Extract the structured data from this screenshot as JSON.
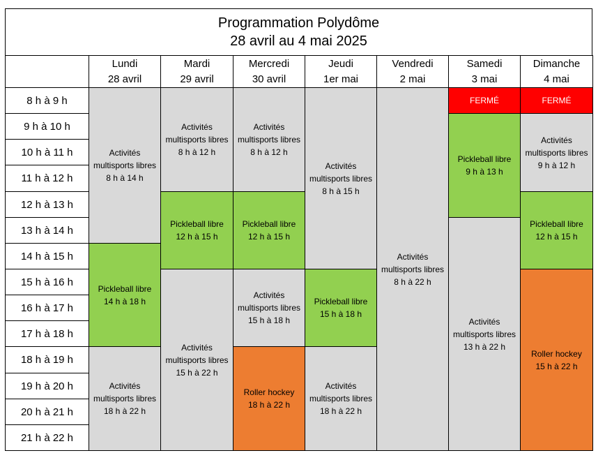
{
  "title": {
    "line1": "Programmation Polydôme",
    "line2": "28 avril au 4 mai 2025"
  },
  "days": [
    {
      "name": "Lundi",
      "date": "28 avril"
    },
    {
      "name": "Mardi",
      "date": "29 avril"
    },
    {
      "name": "Mercredi",
      "date": "30 avril"
    },
    {
      "name": "Jeudi",
      "date": "1er mai"
    },
    {
      "name": "Vendredi",
      "date": "2 mai"
    },
    {
      "name": "Samedi",
      "date": "3 mai"
    },
    {
      "name": "Dimanche",
      "date": "4 mai"
    }
  ],
  "time_slots": [
    "8 h à 9 h",
    "9 h à 10 h",
    "10 h à 11 h",
    "11 h à 12 h",
    "12 h à 13 h",
    "13 h à 14 h",
    "14 h à 15 h",
    "15 h à 16 h",
    "16 h à 17 h",
    "17 h à 18 h",
    "18 h à 19 h",
    "19 h à 20 h",
    "20 h à 21 h",
    "21 h à 22 h"
  ],
  "legend_colors": {
    "multisports": "#d9d9d9",
    "pickleball": "#92d050",
    "roller": "#ed7d31",
    "closed": "#ff0000"
  },
  "schedule": [
    [
      {
        "start": 0,
        "span": 6,
        "kind": "multisports",
        "lines": [
          "Activités",
          "multisports libres",
          "8 h à 14 h"
        ]
      },
      {
        "start": 6,
        "span": 4,
        "kind": "pickleball",
        "lines": [
          "Pickleball libre",
          "14 h à 18 h"
        ]
      },
      {
        "start": 10,
        "span": 4,
        "kind": "multisports",
        "lines": [
          "Activités",
          "multisports libres",
          "18 h à 22 h"
        ]
      }
    ],
    [
      {
        "start": 0,
        "span": 4,
        "kind": "multisports",
        "lines": [
          "Activités",
          "multisports libres",
          "8 h à 12 h"
        ]
      },
      {
        "start": 4,
        "span": 3,
        "kind": "pickleball",
        "lines": [
          "Pickleball libre",
          "12 h à 15 h"
        ]
      },
      {
        "start": 7,
        "span": 7,
        "kind": "multisports",
        "lines": [
          "Activités",
          "multisports libres",
          "15 h à 22 h"
        ]
      }
    ],
    [
      {
        "start": 0,
        "span": 4,
        "kind": "multisports",
        "lines": [
          "Activités",
          "multisports libres",
          "8 h à 12 h"
        ]
      },
      {
        "start": 4,
        "span": 3,
        "kind": "pickleball",
        "lines": [
          "Pickleball libre",
          "12 h à 15 h"
        ]
      },
      {
        "start": 7,
        "span": 3,
        "kind": "multisports",
        "lines": [
          "Activités",
          "multisports libres",
          "15 h à 18 h"
        ]
      },
      {
        "start": 10,
        "span": 4,
        "kind": "roller",
        "lines": [
          "Roller hockey",
          "18 h à 22 h"
        ]
      }
    ],
    [
      {
        "start": 0,
        "span": 7,
        "kind": "multisports",
        "lines": [
          "Activités",
          "multisports libres",
          "8 h à 15 h"
        ]
      },
      {
        "start": 7,
        "span": 3,
        "kind": "pickleball",
        "lines": [
          "Pickleball libre",
          "15 h à 18 h"
        ]
      },
      {
        "start": 10,
        "span": 4,
        "kind": "multisports",
        "lines": [
          "Activités",
          "multisports libres",
          "18 h à 22 h"
        ]
      }
    ],
    [
      {
        "start": 0,
        "span": 14,
        "kind": "multisports",
        "lines": [
          "Activités",
          "multisports libres",
          "8 h à 22 h"
        ]
      }
    ],
    [
      {
        "start": 0,
        "span": 1,
        "kind": "closed",
        "lines": [
          "FERMÉ"
        ]
      },
      {
        "start": 1,
        "span": 4,
        "kind": "pickleball",
        "lines": [
          "Pickleball libre",
          "9 h à 13 h"
        ]
      },
      {
        "start": 5,
        "span": 9,
        "kind": "multisports",
        "lines": [
          "Activités",
          "multisports libres",
          "13 h à 22 h"
        ]
      }
    ],
    [
      {
        "start": 0,
        "span": 1,
        "kind": "closed",
        "lines": [
          "FERMÉ"
        ]
      },
      {
        "start": 1,
        "span": 3,
        "kind": "multisports",
        "lines": [
          "Activités",
          "multisports libres",
          "9 h à 12 h"
        ]
      },
      {
        "start": 4,
        "span": 3,
        "kind": "pickleball",
        "lines": [
          "Pickleball libre",
          "12 h à 15 h"
        ]
      },
      {
        "start": 7,
        "span": 7,
        "kind": "roller",
        "lines": [
          "Roller hockey",
          "15 h à 22 h"
        ]
      }
    ]
  ]
}
